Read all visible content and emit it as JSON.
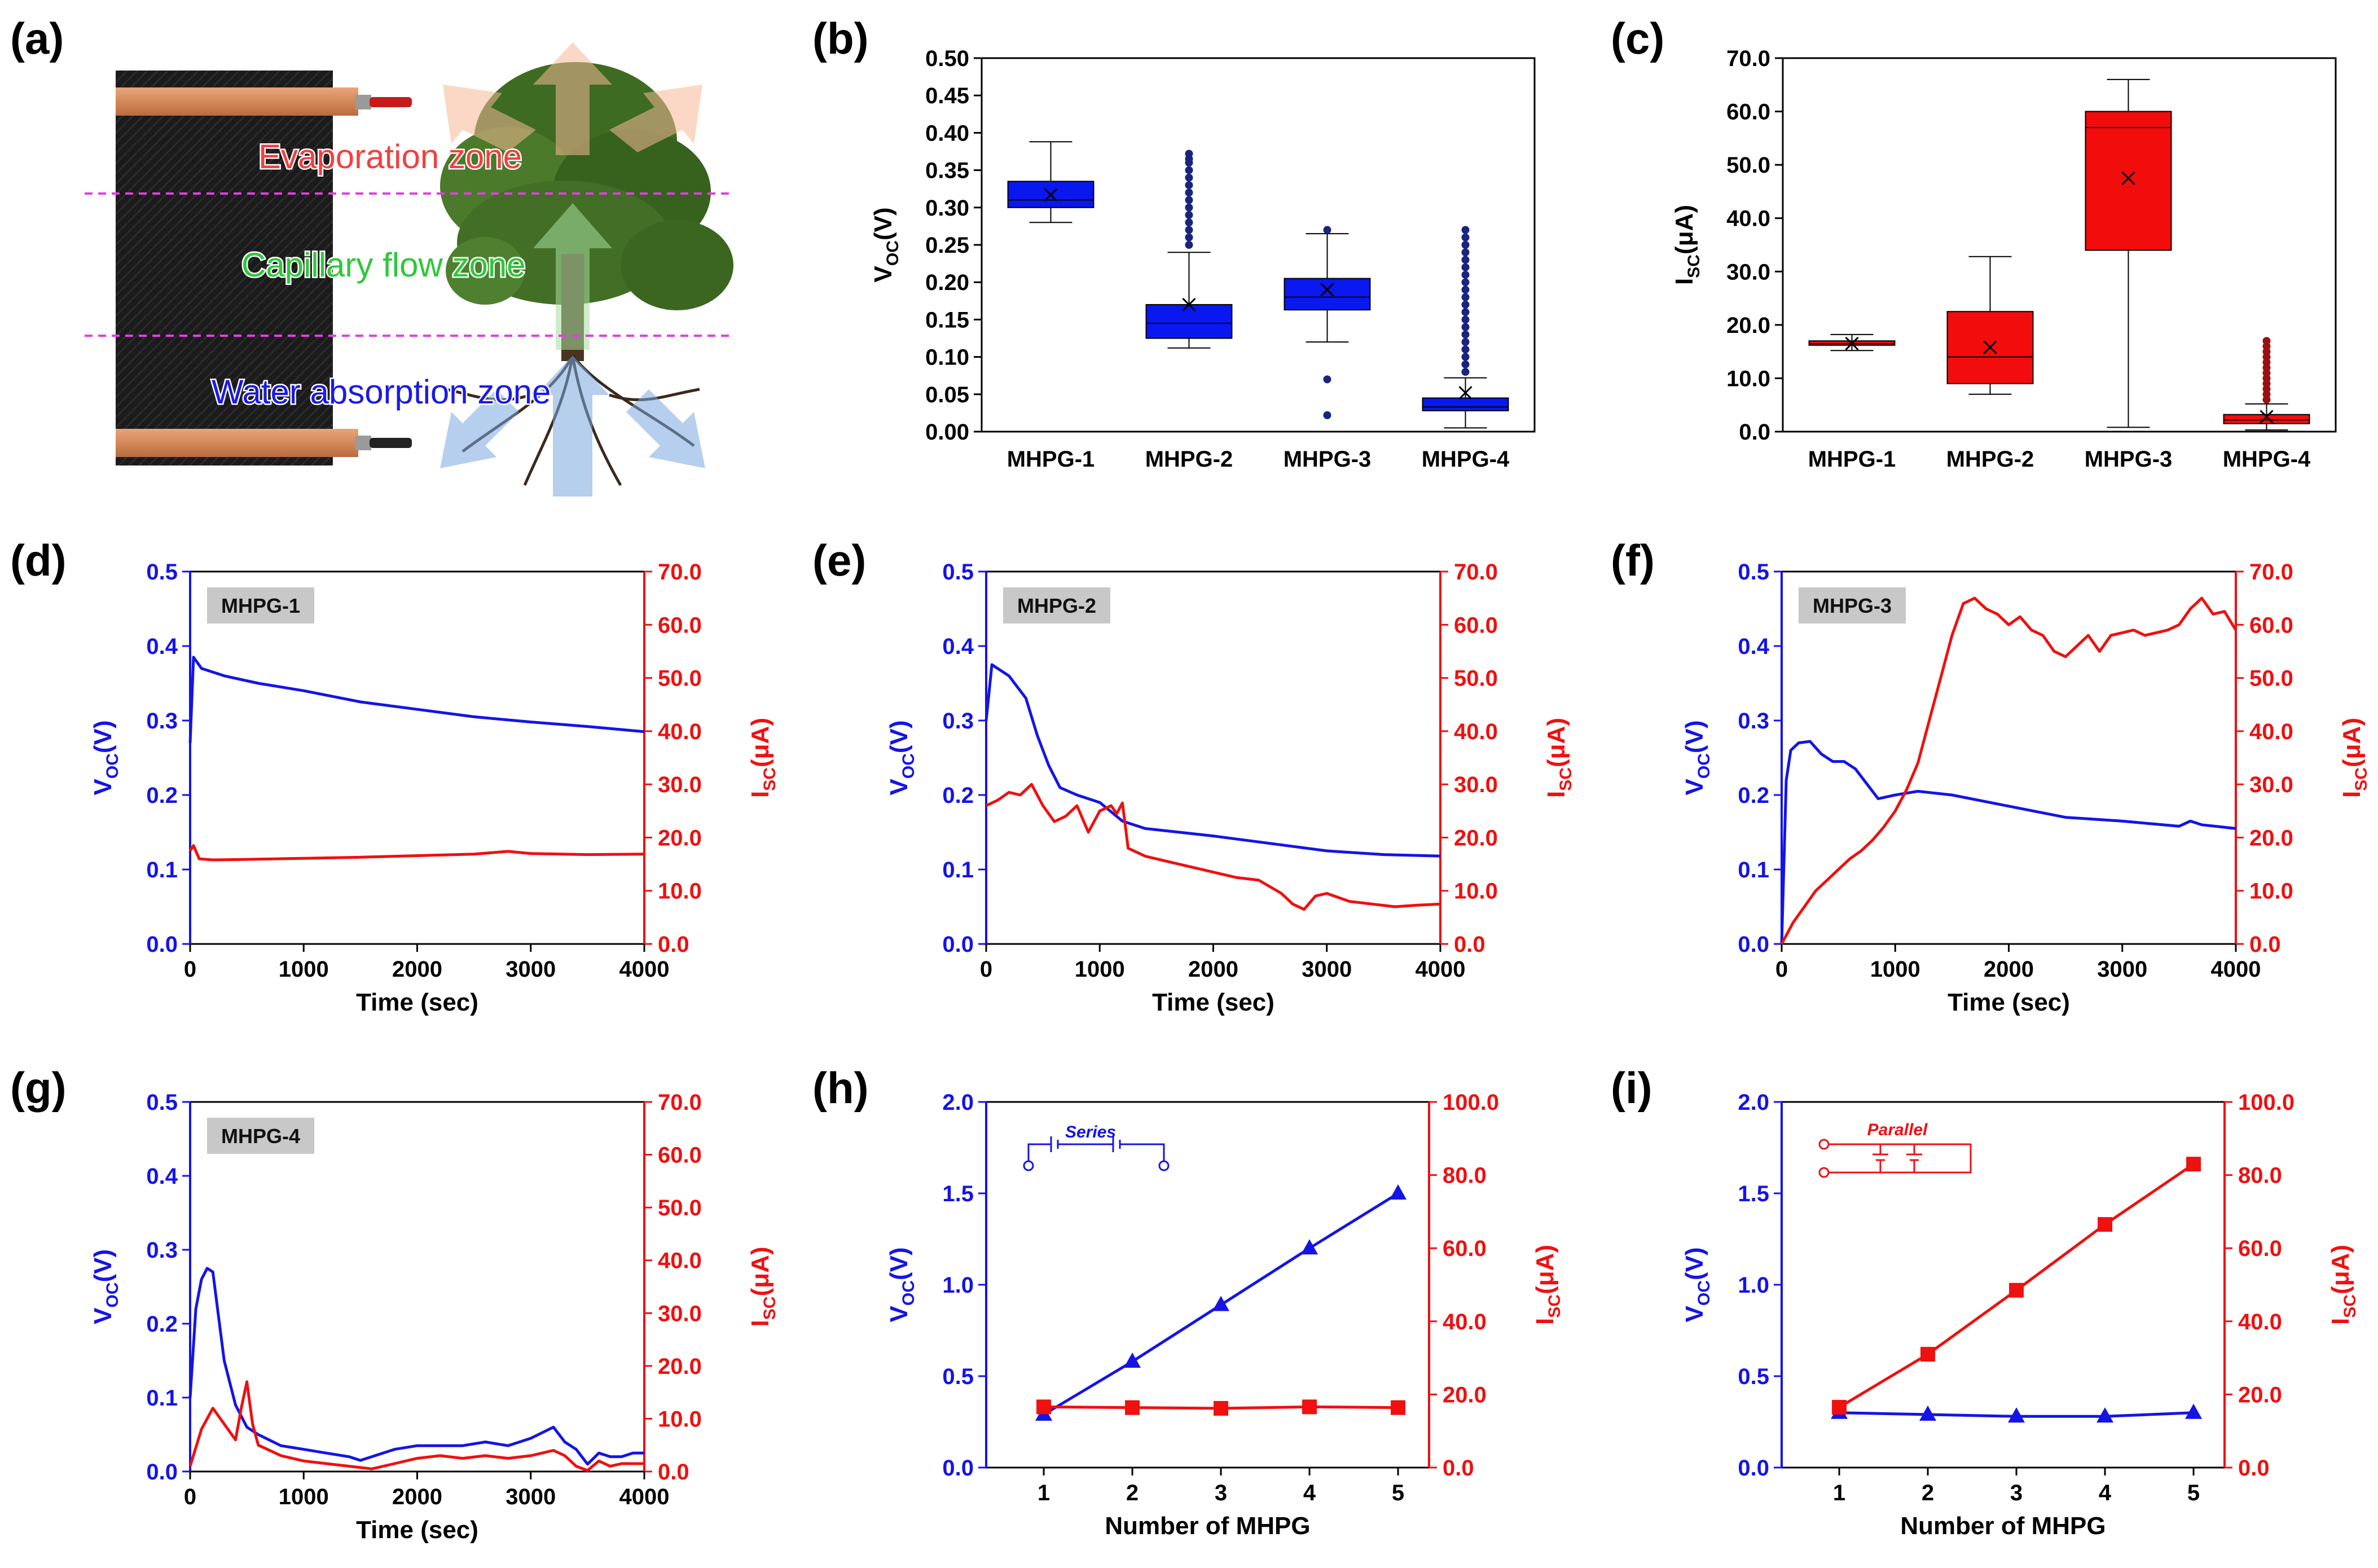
{
  "panel_letters": [
    "(a)",
    "(b)",
    "(c)",
    "(d)",
    "(e)",
    "(f)",
    "(g)",
    "(h)",
    "(i)"
  ],
  "colors": {
    "voc": "#1414e6",
    "isc": "#ef1010",
    "box_b": "#0a18f0",
    "box_c": "#f20c0c",
    "outlier_b": "#1a237e",
    "outlier_c": "#9b1010"
  },
  "panel_a": {
    "zones": [
      {
        "label": "Evaporation zone",
        "color": "#f24040"
      },
      {
        "label": "Capillary flow zone",
        "color": "#2ec83a"
      },
      {
        "label": "Water absorption zone",
        "color": "#1a1ae6"
      }
    ],
    "divider_color": "#e040e0",
    "icons": [
      "fabric-generator-illustration",
      "tree-illustration",
      "root-illustration",
      "copper-electrode-icon",
      "wire-icon",
      "arrow-icon"
    ]
  },
  "chart_data": [
    {
      "id": "b",
      "type": "box",
      "categories": [
        "MHPG-1",
        "MHPG-2",
        "MHPG-3",
        "MHPG-4"
      ],
      "ylabel": {
        "main": "V",
        "sub": "OC",
        "unit": "(V)"
      },
      "ylim": [
        0,
        0.5
      ],
      "yticks": [
        "0.00",
        "0.05",
        "0.10",
        "0.15",
        "0.20",
        "0.25",
        "0.30",
        "0.35",
        "0.40",
        "0.45",
        "0.50"
      ],
      "boxes": [
        {
          "name": "MHPG-1",
          "min": 0.28,
          "q1": 0.3,
          "median": 0.31,
          "q3": 0.335,
          "max": 0.388,
          "mean": 0.317,
          "outliers": []
        },
        {
          "name": "MHPG-2",
          "min": 0.112,
          "q1": 0.125,
          "median": 0.145,
          "q3": 0.17,
          "max": 0.24,
          "mean": 0.17,
          "outliers": [
            0.25,
            0.26,
            0.27,
            0.28,
            0.29,
            0.3,
            0.31,
            0.32,
            0.33,
            0.34,
            0.35,
            0.36,
            0.365,
            0.372
          ]
        },
        {
          "name": "MHPG-3",
          "min": 0.12,
          "q1": 0.163,
          "median": 0.18,
          "q3": 0.205,
          "max": 0.265,
          "mean": 0.19,
          "outliers": [
            0.022,
            0.07,
            0.27
          ]
        },
        {
          "name": "MHPG-4",
          "min": 0.005,
          "q1": 0.028,
          "median": 0.033,
          "q3": 0.045,
          "max": 0.072,
          "mean": 0.052,
          "outliers": [
            0.08,
            0.09,
            0.1,
            0.11,
            0.12,
            0.13,
            0.14,
            0.15,
            0.16,
            0.17,
            0.18,
            0.19,
            0.2,
            0.21,
            0.22,
            0.23,
            0.24,
            0.25,
            0.26,
            0.27
          ]
        }
      ]
    },
    {
      "id": "c",
      "type": "box",
      "categories": [
        "MHPG-1",
        "MHPG-2",
        "MHPG-3",
        "MHPG-4"
      ],
      "ylabel": {
        "main": "I",
        "sub": "SC",
        "unit": "(μA)"
      },
      "ylim": [
        0,
        70
      ],
      "yticks": [
        "0.0",
        "10.0",
        "20.0",
        "30.0",
        "40.0",
        "50.0",
        "60.0",
        "70.0"
      ],
      "boxes": [
        {
          "name": "MHPG-1",
          "min": 15.2,
          "q1": 16.2,
          "median": 16.5,
          "q3": 17.0,
          "max": 18.2,
          "mean": 16.5,
          "outliers": []
        },
        {
          "name": "MHPG-2",
          "min": 7.0,
          "q1": 9.0,
          "median": 14.0,
          "q3": 22.5,
          "max": 32.8,
          "mean": 15.8,
          "outliers": []
        },
        {
          "name": "MHPG-3",
          "min": 0.8,
          "q1": 34.0,
          "median": 57.0,
          "q3": 60.0,
          "max": 66.0,
          "mean": 47.5,
          "outliers": []
        },
        {
          "name": "MHPG-4",
          "min": 0.3,
          "q1": 1.5,
          "median": 2.2,
          "q3": 3.2,
          "max": 5.2,
          "mean": 2.8,
          "outliers": [
            6.0,
            7.0,
            8.0,
            9.0,
            10.0,
            11.0,
            12.0,
            13.0,
            14.0,
            15.0,
            16.0,
            17.0
          ]
        }
      ]
    },
    {
      "id": "d",
      "type": "line",
      "tag": "MHPG-1",
      "xlabel": "Time (sec)",
      "xlim": [
        0,
        4000
      ],
      "xticks": [
        "0",
        "1000",
        "2000",
        "3000",
        "4000"
      ],
      "y_left": {
        "label": {
          "main": "V",
          "sub": "OC",
          "unit": "(V)"
        },
        "lim": [
          0,
          0.5
        ],
        "ticks": [
          "0.0",
          "0.1",
          "0.2",
          "0.3",
          "0.4",
          "0.5"
        ]
      },
      "y_right": {
        "label": {
          "main": "I",
          "sub": "SC",
          "unit": "(μA)"
        },
        "lim": [
          0,
          70
        ],
        "ticks": [
          "0.0",
          "10.0",
          "20.0",
          "30.0",
          "40.0",
          "50.0",
          "60.0",
          "70.0"
        ]
      },
      "series": [
        {
          "axis": "left",
          "color": "#1414e6",
          "x": [
            0,
            30,
            100,
            300,
            600,
            1000,
            1500,
            2000,
            2500,
            3000,
            3500,
            4000
          ],
          "y": [
            0.27,
            0.385,
            0.37,
            0.36,
            0.35,
            0.34,
            0.325,
            0.315,
            0.305,
            0.298,
            0.292,
            0.285
          ]
        },
        {
          "axis": "right",
          "color": "#ef1010",
          "x": [
            0,
            30,
            80,
            200,
            500,
            1000,
            1500,
            2000,
            2500,
            2800,
            3000,
            3500,
            4000
          ],
          "y": [
            17.5,
            18.5,
            16.0,
            15.8,
            15.9,
            16.1,
            16.3,
            16.6,
            16.9,
            17.4,
            17.0,
            16.8,
            16.9
          ]
        }
      ]
    },
    {
      "id": "e",
      "type": "line",
      "tag": "MHPG-2",
      "xlabel": "Time (sec)",
      "xlim": [
        0,
        4000
      ],
      "xticks": [
        "0",
        "1000",
        "2000",
        "3000",
        "4000"
      ],
      "y_left": {
        "label": {
          "main": "V",
          "sub": "OC",
          "unit": "(V)"
        },
        "lim": [
          0,
          0.5
        ],
        "ticks": [
          "0.0",
          "0.1",
          "0.2",
          "0.3",
          "0.4",
          "0.5"
        ]
      },
      "y_right": {
        "label": {
          "main": "I",
          "sub": "SC",
          "unit": "(μA)"
        },
        "lim": [
          0,
          70
        ],
        "ticks": [
          "0.0",
          "10.0",
          "20.0",
          "30.0",
          "40.0",
          "50.0",
          "60.0",
          "70.0"
        ]
      },
      "series": [
        {
          "axis": "left",
          "color": "#1414e6",
          "x": [
            0,
            50,
            200,
            350,
            450,
            550,
            650,
            800,
            1000,
            1200,
            1400,
            1700,
            2000,
            2500,
            3000,
            3500,
            4000
          ],
          "y": [
            0.3,
            0.375,
            0.36,
            0.33,
            0.28,
            0.24,
            0.21,
            0.2,
            0.19,
            0.165,
            0.155,
            0.15,
            0.145,
            0.135,
            0.125,
            0.12,
            0.118
          ]
        },
        {
          "axis": "right",
          "color": "#ef1010",
          "x": [
            0,
            100,
            200,
            300,
            400,
            500,
            600,
            700,
            800,
            900,
            1000,
            1100,
            1150,
            1200,
            1250,
            1400,
            1600,
            1800,
            2000,
            2200,
            2400,
            2600,
            2700,
            2800,
            2900,
            3000,
            3200,
            3400,
            3600,
            3800,
            4000
          ],
          "y": [
            26.0,
            27.0,
            28.5,
            28.0,
            30.0,
            26.0,
            23.0,
            24.0,
            26.0,
            21.0,
            25.0,
            26.0,
            24.5,
            26.5,
            18.0,
            16.5,
            15.5,
            14.5,
            13.5,
            12.5,
            12.0,
            9.5,
            7.5,
            6.5,
            9.0,
            9.5,
            8.0,
            7.5,
            7.0,
            7.3,
            7.5
          ]
        }
      ]
    },
    {
      "id": "f",
      "type": "line",
      "tag": "MHPG-3",
      "xlabel": "Time (sec)",
      "xlim": [
        0,
        4000
      ],
      "xticks": [
        "0",
        "1000",
        "2000",
        "3000",
        "4000"
      ],
      "y_left": {
        "label": {
          "main": "V",
          "sub": "OC",
          "unit": "(V)"
        },
        "lim": [
          0,
          0.5
        ],
        "ticks": [
          "0.0",
          "0.1",
          "0.2",
          "0.3",
          "0.4",
          "0.5"
        ]
      },
      "y_right": {
        "label": {
          "main": "I",
          "sub": "SC",
          "unit": "(μA)"
        },
        "lim": [
          0,
          70
        ],
        "ticks": [
          "0.0",
          "10.0",
          "20.0",
          "30.0",
          "40.0",
          "50.0",
          "60.0",
          "70.0"
        ]
      },
      "series": [
        {
          "axis": "left",
          "color": "#1414e6",
          "x": [
            0,
            40,
            80,
            150,
            250,
            350,
            450,
            550,
            650,
            750,
            850,
            1000,
            1200,
            1500,
            2000,
            2500,
            3000,
            3500,
            3600,
            3700,
            4000
          ],
          "y": [
            0.0,
            0.22,
            0.26,
            0.27,
            0.272,
            0.255,
            0.245,
            0.245,
            0.235,
            0.215,
            0.195,
            0.2,
            0.205,
            0.2,
            0.185,
            0.17,
            0.165,
            0.158,
            0.165,
            0.16,
            0.155
          ]
        },
        {
          "axis": "right",
          "color": "#ef1010",
          "x": [
            0,
            50,
            100,
            200,
            300,
            400,
            500,
            600,
            700,
            800,
            900,
            1000,
            1100,
            1200,
            1300,
            1400,
            1500,
            1600,
            1700,
            1800,
            1900,
            2000,
            2100,
            2200,
            2300,
            2400,
            2500,
            2600,
            2700,
            2800,
            2900,
            3000,
            3100,
            3200,
            3300,
            3400,
            3500,
            3600,
            3700,
            3800,
            3900,
            4000
          ],
          "y": [
            0.0,
            2.0,
            4.0,
            7.0,
            10.0,
            12.0,
            14.0,
            16.0,
            17.5,
            19.5,
            22.0,
            25.0,
            29.0,
            34.0,
            42.0,
            50.0,
            58.0,
            64.0,
            65.0,
            63.0,
            62.0,
            60.0,
            61.5,
            59.0,
            58.0,
            55.0,
            54.0,
            56.0,
            58.0,
            55.0,
            58.0,
            58.5,
            59.0,
            58.0,
            58.5,
            59.0,
            60.0,
            63.0,
            65.0,
            62.0,
            62.5,
            59.0
          ]
        }
      ]
    },
    {
      "id": "g",
      "type": "line",
      "tag": "MHPG-4",
      "xlabel": "Time (sec)",
      "xlim": [
        0,
        4000
      ],
      "xticks": [
        "0",
        "1000",
        "2000",
        "3000",
        "4000"
      ],
      "y_left": {
        "label": {
          "main": "V",
          "sub": "OC",
          "unit": "(V)"
        },
        "lim": [
          0,
          0.5
        ],
        "ticks": [
          "0.0",
          "0.1",
          "0.2",
          "0.3",
          "0.4",
          "0.5"
        ]
      },
      "y_right": {
        "label": {
          "main": "I",
          "sub": "SC",
          "unit": "(μA)"
        },
        "lim": [
          0,
          70
        ],
        "ticks": [
          "0.0",
          "10.0",
          "20.0",
          "30.0",
          "40.0",
          "50.0",
          "60.0",
          "70.0"
        ]
      },
      "series": [
        {
          "axis": "left",
          "color": "#1414e6",
          "x": [
            0,
            50,
            100,
            150,
            200,
            250,
            300,
            350,
            400,
            500,
            600,
            800,
            1000,
            1200,
            1400,
            1500,
            1600,
            1800,
            2000,
            2200,
            2400,
            2600,
            2800,
            3000,
            3200,
            3300,
            3400,
            3500,
            3600,
            3700,
            3800,
            3900,
            4000
          ],
          "y": [
            0.1,
            0.22,
            0.26,
            0.275,
            0.27,
            0.21,
            0.15,
            0.12,
            0.09,
            0.06,
            0.05,
            0.035,
            0.03,
            0.025,
            0.02,
            0.015,
            0.02,
            0.03,
            0.035,
            0.035,
            0.035,
            0.04,
            0.035,
            0.045,
            0.06,
            0.04,
            0.03,
            0.01,
            0.025,
            0.02,
            0.02,
            0.025,
            0.025
          ]
        },
        {
          "axis": "right",
          "color": "#ef1010",
          "x": [
            0,
            100,
            200,
            300,
            400,
            450,
            500,
            550,
            600,
            800,
            1000,
            1200,
            1400,
            1600,
            1800,
            2000,
            2200,
            2400,
            2600,
            2800,
            3000,
            3200,
            3300,
            3400,
            3500,
            3600,
            3700,
            3800,
            4000
          ],
          "y": [
            1.0,
            8.0,
            12.0,
            9.0,
            6.0,
            12.0,
            17.0,
            9.0,
            5.0,
            3.0,
            2.0,
            1.5,
            1.0,
            0.5,
            1.5,
            2.5,
            3.0,
            2.5,
            3.0,
            2.5,
            3.0,
            4.0,
            3.0,
            1.0,
            0.2,
            2.0,
            1.0,
            1.5,
            1.5
          ]
        }
      ]
    },
    {
      "id": "h",
      "type": "line",
      "circuit": {
        "label": "Series",
        "color": "#1414e6"
      },
      "xlabel": "Number of MHPG",
      "xlim": [
        0.35,
        5.35
      ],
      "x": [
        1,
        2,
        3,
        4,
        5
      ],
      "xticks": [
        "1",
        "2",
        "3",
        "4",
        "5"
      ],
      "y_left": {
        "label": {
          "main": "V",
          "sub": "OC",
          "unit": "(V)"
        },
        "lim": [
          0,
          2.0
        ],
        "ticks": [
          "0.0",
          "0.5",
          "1.0",
          "1.5",
          "2.0"
        ]
      },
      "y_right": {
        "label": {
          "main": "I",
          "sub": "SC",
          "unit": "(μA)"
        },
        "lim": [
          0,
          100
        ],
        "ticks": [
          "0.0",
          "20.0",
          "40.0",
          "60.0",
          "80.0",
          "100.0"
        ]
      },
      "series": [
        {
          "axis": "left",
          "color": "#1414e6",
          "marker": "triangle",
          "x": [
            1,
            2,
            3,
            4,
            5
          ],
          "y": [
            0.29,
            0.58,
            0.89,
            1.2,
            1.5
          ]
        },
        {
          "axis": "right",
          "color": "#ef1010",
          "marker": "square",
          "x": [
            1,
            2,
            3,
            4,
            5
          ],
          "y": [
            16.6,
            16.4,
            16.2,
            16.6,
            16.4
          ]
        }
      ]
    },
    {
      "id": "i",
      "type": "line",
      "circuit": {
        "label": "Parallel",
        "color": "#ef1010"
      },
      "xlabel": "Number of MHPG",
      "xlim": [
        0.35,
        5.35
      ],
      "x": [
        1,
        2,
        3,
        4,
        5
      ],
      "xticks": [
        "1",
        "2",
        "3",
        "4",
        "5"
      ],
      "y_left": {
        "label": {
          "main": "V",
          "sub": "OC",
          "unit": "(V)"
        },
        "lim": [
          0,
          2.0
        ],
        "ticks": [
          "0.0",
          "0.5",
          "1.0",
          "1.5",
          "2.0"
        ]
      },
      "y_right": {
        "label": {
          "main": "I",
          "sub": "SC",
          "unit": "(μA)"
        },
        "lim": [
          0,
          100
        ],
        "ticks": [
          "0.0",
          "20.0",
          "40.0",
          "60.0",
          "80.0",
          "100.0"
        ]
      },
      "series": [
        {
          "axis": "left",
          "color": "#1414e6",
          "marker": "triangle",
          "x": [
            1,
            2,
            3,
            4,
            5
          ],
          "y": [
            0.3,
            0.29,
            0.28,
            0.28,
            0.3
          ]
        },
        {
          "axis": "right",
          "color": "#ef1010",
          "marker": "square",
          "x": [
            1,
            2,
            3,
            4,
            5
          ],
          "y": [
            16.5,
            31.0,
            48.5,
            66.5,
            83.0
          ]
        }
      ]
    }
  ]
}
